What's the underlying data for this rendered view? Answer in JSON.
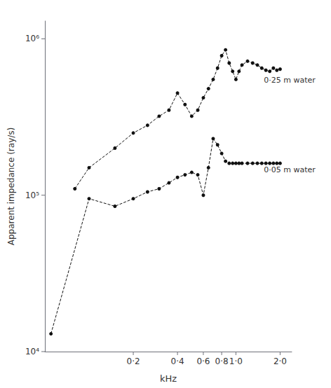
{
  "chart_data": {
    "type": "line",
    "xlabel": "kHz",
    "ylabel": "Apparent impedance (ray/s)",
    "log": true,
    "grid": false,
    "series": [
      {
        "x": [
          0.08,
          0.1,
          0.15,
          0.2,
          0.25,
          0.3,
          0.35,
          0.4,
          0.45,
          0.5,
          0.55,
          0.6,
          0.65,
          0.7,
          0.75,
          0.8,
          0.85,
          0.9,
          0.95,
          1.0,
          1.05,
          1.1,
          1.2,
          1.3,
          1.4,
          1.5,
          1.6,
          1.7,
          1.8,
          1.9,
          2.0
        ],
        "values": [
          110000.0,
          150000.0,
          200000.0,
          250000.0,
          280000.0,
          320000.0,
          350000.0,
          450000.0,
          380000.0,
          320000.0,
          350000.0,
          420000.0,
          480000.0,
          550000.0,
          650000.0,
          780000.0,
          850000.0,
          700000.0,
          620000.0,
          550000.0,
          620000.0,
          680000.0,
          720000.0,
          700000.0,
          680000.0,
          650000.0,
          630000.0,
          620000.0,
          650000.0,
          630000.0,
          640000.0
        ],
        "color": "#111111",
        "marker": "circle",
        "line_style": "dashed"
      },
      {
        "x": [
          0.055,
          0.1,
          0.15,
          0.2,
          0.25,
          0.3,
          0.35,
          0.4,
          0.45,
          0.5,
          0.55,
          0.6,
          0.65,
          0.7,
          0.75,
          0.8,
          0.85,
          0.9,
          0.95,
          1.0,
          1.05,
          1.1,
          1.2,
          1.3,
          1.4,
          1.5,
          1.6,
          1.7,
          1.8,
          1.9,
          2.0
        ],
        "values": [
          13000.0,
          95000.0,
          85000.0,
          95000.0,
          105000.0,
          110000.0,
          120000.0,
          130000.0,
          135000.0,
          140000.0,
          135000.0,
          100000.0,
          150000.0,
          230000.0,
          210000.0,
          185000.0,
          165000.0,
          160000.0,
          160000.0,
          160000.0,
          160000.0,
          160000.0,
          160000.0,
          160000.0,
          160000.0,
          160000.0,
          160000.0,
          160000.0,
          160000.0,
          160000.0,
          160000.0
        ],
        "color": "#111111",
        "marker": "circle",
        "line_style": "dashed"
      }
    ],
    "annotations": [
      {
        "text": "0·25 m water",
        "x": 1.55,
        "y": 600000.0
      },
      {
        "text": "0·05 m water",
        "x": 1.55,
        "y": 160000.0
      }
    ],
    "xlim": [
      0.05,
      2.4
    ],
    "xticks": [
      {
        "value": 0.2,
        "label": "0·2"
      },
      {
        "value": 0.4,
        "label": "0·4"
      },
      {
        "value": 0.6,
        "label": "0·6"
      },
      {
        "value": 0.8,
        "label": "0·8"
      },
      {
        "value": 1.0,
        "label": "1·0"
      },
      {
        "value": 2.0,
        "label": "2·0"
      }
    ],
    "ylim": [
      10000.0,
      1300000.0
    ],
    "yticks": [
      {
        "value": 10000,
        "label": "10⁴"
      },
      {
        "value": 100000,
        "label": "10⁵"
      },
      {
        "value": 1000000,
        "label": "10⁶"
      }
    ]
  }
}
